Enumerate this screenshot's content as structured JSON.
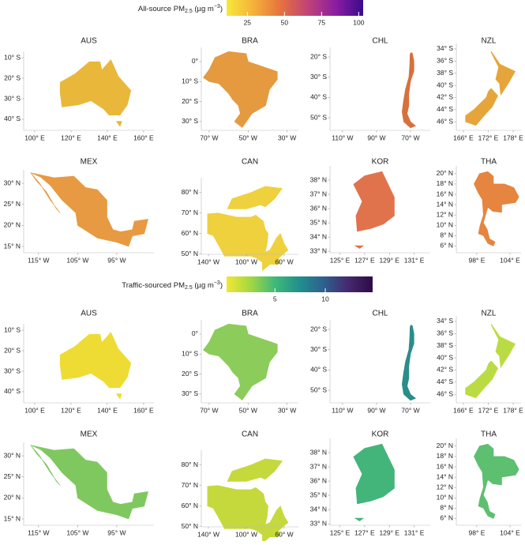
{
  "figures": [
    {
      "colorbar": {
        "label": {
          "main": "All-source PM",
          "sub": "2.5",
          "unit": " (µg m",
          "sup": "−3",
          "end": ")"
        },
        "lim": [
          11,
          103
        ],
        "ticks": [
          25,
          50,
          75,
          100
        ],
        "colors": [
          "#f5e93a",
          "#f6b03a",
          "#e4713f",
          "#c0417a",
          "#8a1da3",
          "#3b0a8c"
        ]
      },
      "panels": [
        {
          "title": "AUS",
          "color": "#e9b73a",
          "xlim": [
            93.9,
            165.7
          ],
          "ylim": [
            -45.4,
            -6.9
          ],
          "xticks": [
            {
              "value": 100,
              "label": "100° E"
            },
            {
              "value": 120,
              "label": "120° E"
            },
            {
              "value": 140,
              "label": "140° E"
            },
            {
              "value": 160,
              "label": "160° E"
            }
          ],
          "yticks": [
            {
              "value": -10,
              "label": "10° S"
            },
            {
              "value": -20,
              "label": "20° S"
            },
            {
              "value": -30,
              "label": "30° S"
            },
            {
              "value": -40,
              "label": "40° S"
            }
          ]
        },
        {
          "title": "BRA",
          "color": "#e59a3f",
          "xlim": [
            -74,
            -24.2
          ],
          "ylim": [
            -34.4,
            7.1
          ],
          "xticks": [
            {
              "value": -70,
              "label": "70° W"
            },
            {
              "value": -50,
              "label": "50° W"
            },
            {
              "value": -30,
              "label": "30° W"
            }
          ],
          "yticks": [
            {
              "value": 0,
              "label": "0°"
            },
            {
              "value": -10,
              "label": "10° S"
            },
            {
              "value": -20,
              "label": "20° S"
            },
            {
              "value": -30,
              "label": "30° S"
            }
          ]
        },
        {
          "title": "CHL",
          "color": "#d7703d",
          "xlim": [
            -117.4,
            -58.4
          ],
          "ylim": [
            -56.2,
            -15.3
          ],
          "xticks": [
            {
              "value": -110,
              "label": "110° W"
            },
            {
              "value": -90,
              "label": "90° W"
            },
            {
              "value": -70,
              "label": "70° W"
            }
          ],
          "yticks": [
            {
              "value": -20,
              "label": "20° S"
            },
            {
              "value": -30,
              "label": "30° S"
            },
            {
              "value": -40,
              "label": "40° S"
            },
            {
              "value": -50,
              "label": "50° S"
            }
          ]
        },
        {
          "title": "NZL",
          "color": "#e6a53b",
          "xlim": [
            164.3,
            179.9
          ],
          "ylim": [
            -47.4,
            -33.1
          ],
          "xticks": [
            {
              "value": 166,
              "label": "166° E"
            },
            {
              "value": 172,
              "label": "172° E"
            },
            {
              "value": 178,
              "label": "178° E"
            }
          ],
          "yticks": [
            {
              "value": -34,
              "label": "34° S"
            },
            {
              "value": -36,
              "label": "36° S"
            },
            {
              "value": -38,
              "label": "38° S"
            },
            {
              "value": -40,
              "label": "40° S"
            },
            {
              "value": -42,
              "label": "42° S"
            },
            {
              "value": -44,
              "label": "44° S"
            },
            {
              "value": -46,
              "label": "46° S"
            }
          ]
        },
        {
          "title": "MEX",
          "color": "#e79a42",
          "xlim": [
            -118.8,
            -85.5
          ],
          "ylim": [
            13.5,
            33.2
          ],
          "xticks": [
            {
              "value": -115,
              "label": "115° W"
            },
            {
              "value": -105,
              "label": "105° W"
            },
            {
              "value": -95,
              "label": "95° W"
            }
          ],
          "yticks": [
            {
              "value": 30,
              "label": "30° N"
            },
            {
              "value": 25,
              "label": "25° N"
            },
            {
              "value": 20,
              "label": "20° N"
            },
            {
              "value": 15,
              "label": "15° N"
            }
          ]
        },
        {
          "title": "CAN",
          "color": "#efd03d",
          "xlim": [
            -147.5,
            -45
          ],
          "ylim": [
            49.9,
            87.2
          ],
          "xticks": [
            {
              "value": -140,
              "label": "140° W"
            },
            {
              "value": -100,
              "label": "100° W"
            },
            {
              "value": -60,
              "label": "60° W"
            }
          ],
          "yticks": [
            {
              "value": 80,
              "label": "80° N"
            },
            {
              "value": 70,
              "label": "70° N"
            },
            {
              "value": 60,
              "label": "60° N"
            },
            {
              "value": 50,
              "label": "50° N"
            }
          ]
        },
        {
          "title": "KOR",
          "color": "#e0734c",
          "xlim": [
            124.2,
            132.3
          ],
          "ylim": [
            32.9,
            39
          ],
          "xticks": [
            {
              "value": 125,
              "label": "125° E"
            },
            {
              "value": 127,
              "label": "127° E"
            },
            {
              "value": 129,
              "label": "129° E"
            },
            {
              "value": 131,
              "label": "131° E"
            }
          ],
          "yticks": [
            {
              "value": 38,
              "label": "38° N"
            },
            {
              "value": 37,
              "label": "37° N"
            },
            {
              "value": 36,
              "label": "36° N"
            },
            {
              "value": 35,
              "label": "35° N"
            },
            {
              "value": 34,
              "label": "34° N"
            },
            {
              "value": 33,
              "label": "33° N"
            }
          ]
        },
        {
          "title": "THA",
          "color": "#e5853f",
          "xlim": [
            94.3,
            106
          ],
          "ylim": [
            4.7,
            21.5
          ],
          "xticks": [
            {
              "value": 98,
              "label": "98° E"
            },
            {
              "value": 104,
              "label": "104° E"
            }
          ],
          "yticks": [
            {
              "value": 20,
              "label": "20° N"
            },
            {
              "value": 18,
              "label": "18° N"
            },
            {
              "value": 16,
              "label": "16° N"
            },
            {
              "value": 14,
              "label": "14° N"
            },
            {
              "value": 12,
              "label": "12° N"
            },
            {
              "value": 10,
              "label": "10° N"
            },
            {
              "value": 8,
              "label": "8° N"
            },
            {
              "value": 6,
              "label": "6° N"
            }
          ]
        }
      ]
    },
    {
      "colorbar": {
        "label": {
          "main": "Traffic-sourced PM",
          "sub": "2.5",
          "unit": " (µg m",
          "sup": "−3",
          "end": ")"
        },
        "lim": [
          0.2,
          14.7
        ],
        "ticks": [
          5,
          10
        ],
        "colors": [
          "#f2e734",
          "#a2d742",
          "#3fb87a",
          "#218f8c",
          "#2f5f8e",
          "#45286e",
          "#2e0b46"
        ]
      },
      "panels": [
        {
          "title": "AUS",
          "color": "#eedc35",
          "xlim": [
            93.9,
            165.7
          ],
          "ylim": [
            -45.4,
            -6.9
          ],
          "xticks": [
            {
              "value": 100,
              "label": "100° E"
            },
            {
              "value": 120,
              "label": "120° E"
            },
            {
              "value": 140,
              "label": "140° E"
            },
            {
              "value": 160,
              "label": "160° E"
            }
          ],
          "yticks": [
            {
              "value": -10,
              "label": "10° S"
            },
            {
              "value": -20,
              "label": "20° S"
            },
            {
              "value": -30,
              "label": "30° S"
            },
            {
              "value": -40,
              "label": "40° S"
            }
          ]
        },
        {
          "title": "BRA",
          "color": "#8ccc5a",
          "xlim": [
            -74,
            -24.2
          ],
          "ylim": [
            -34.4,
            7.1
          ],
          "xticks": [
            {
              "value": -70,
              "label": "70° W"
            },
            {
              "value": -50,
              "label": "50° W"
            },
            {
              "value": -30,
              "label": "30° W"
            }
          ],
          "yticks": [
            {
              "value": 0,
              "label": "0°"
            },
            {
              "value": -10,
              "label": "10° S"
            },
            {
              "value": -20,
              "label": "20° S"
            },
            {
              "value": -30,
              "label": "30° S"
            }
          ]
        },
        {
          "title": "CHL",
          "color": "#2a8d88",
          "xlim": [
            -117.4,
            -58.4
          ],
          "ylim": [
            -56.2,
            -15.3
          ],
          "xticks": [
            {
              "value": -110,
              "label": "110° W"
            },
            {
              "value": -90,
              "label": "90° W"
            },
            {
              "value": -70,
              "label": "70° W"
            }
          ],
          "yticks": [
            {
              "value": -20,
              "label": "20° S"
            },
            {
              "value": -30,
              "label": "30° S"
            },
            {
              "value": -40,
              "label": "40° S"
            },
            {
              "value": -50,
              "label": "50° S"
            }
          ]
        },
        {
          "title": "NZL",
          "color": "#bbdb44",
          "xlim": [
            164.3,
            179.9
          ],
          "ylim": [
            -47.4,
            -33.1
          ],
          "xticks": [
            {
              "value": 166,
              "label": "166° E"
            },
            {
              "value": 172,
              "label": "172° E"
            },
            {
              "value": 178,
              "label": "178° E"
            }
          ],
          "yticks": [
            {
              "value": -34,
              "label": "34° S"
            },
            {
              "value": -36,
              "label": "36° S"
            },
            {
              "value": -38,
              "label": "38° S"
            },
            {
              "value": -40,
              "label": "40° S"
            },
            {
              "value": -42,
              "label": "42° S"
            },
            {
              "value": -44,
              "label": "44° S"
            },
            {
              "value": -46,
              "label": "46° S"
            }
          ]
        },
        {
          "title": "MEX",
          "color": "#7fc85f",
          "xlim": [
            -118.8,
            -85.5
          ],
          "ylim": [
            13.5,
            33.2
          ],
          "xticks": [
            {
              "value": -115,
              "label": "115° W"
            },
            {
              "value": -105,
              "label": "105° W"
            },
            {
              "value": -95,
              "label": "95° W"
            }
          ],
          "yticks": [
            {
              "value": 30,
              "label": "30° N"
            },
            {
              "value": 25,
              "label": "25° N"
            },
            {
              "value": 20,
              "label": "20° N"
            },
            {
              "value": 15,
              "label": "15° N"
            }
          ]
        },
        {
          "title": "CAN",
          "color": "#c5d93c",
          "xlim": [
            -147.5,
            -45
          ],
          "ylim": [
            49.9,
            87.2
          ],
          "xticks": [
            {
              "value": -140,
              "label": "140° W"
            },
            {
              "value": -100,
              "label": "100° W"
            },
            {
              "value": -60,
              "label": "60° W"
            }
          ],
          "yticks": [
            {
              "value": 80,
              "label": "80° N"
            },
            {
              "value": 70,
              "label": "70° N"
            },
            {
              "value": 60,
              "label": "60° N"
            },
            {
              "value": 50,
              "label": "50° N"
            }
          ]
        },
        {
          "title": "KOR",
          "color": "#43b57a",
          "xlim": [
            124.2,
            132.3
          ],
          "ylim": [
            32.9,
            39
          ],
          "xticks": [
            {
              "value": 125,
              "label": "125° E"
            },
            {
              "value": 127,
              "label": "127° E"
            },
            {
              "value": 129,
              "label": "129° E"
            },
            {
              "value": 131,
              "label": "131° E"
            }
          ],
          "yticks": [
            {
              "value": 38,
              "label": "38° N"
            },
            {
              "value": 37,
              "label": "37° N"
            },
            {
              "value": 36,
              "label": "36° N"
            },
            {
              "value": 35,
              "label": "35° N"
            },
            {
              "value": 34,
              "label": "34° N"
            },
            {
              "value": 33,
              "label": "33° N"
            }
          ]
        },
        {
          "title": "THA",
          "color": "#5dbf70",
          "xlim": [
            94.3,
            106
          ],
          "ylim": [
            4.7,
            21.5
          ],
          "xticks": [
            {
              "value": 98,
              "label": "98° E"
            },
            {
              "value": 104,
              "label": "104° E"
            }
          ],
          "yticks": [
            {
              "value": 20,
              "label": "20° N"
            },
            {
              "value": 18,
              "label": "18° N"
            },
            {
              "value": 16,
              "label": "16° N"
            },
            {
              "value": 14,
              "label": "14° N"
            },
            {
              "value": 12,
              "label": "12° N"
            },
            {
              "value": 10,
              "label": "10° N"
            },
            {
              "value": 8,
              "label": "8° N"
            },
            {
              "value": 6,
              "label": "6° N"
            }
          ]
        }
      ]
    }
  ]
}
